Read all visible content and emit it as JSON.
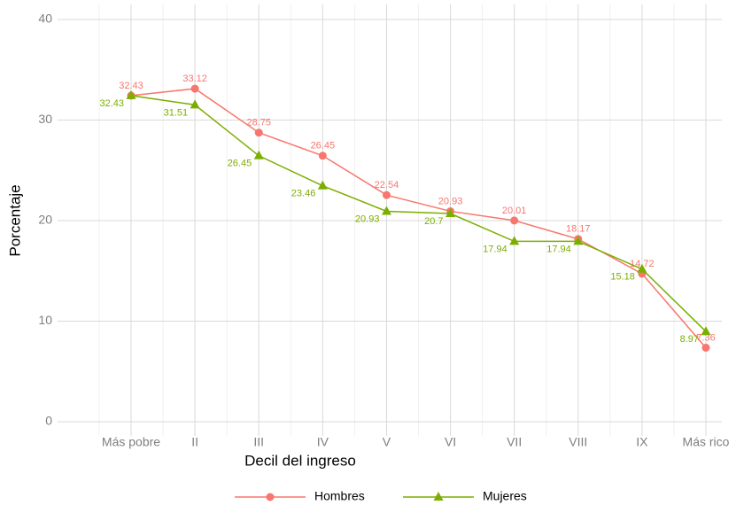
{
  "chart_data": {
    "type": "line",
    "x_label": "Decil del ingreso",
    "y_label": "Porcentaje",
    "categories": [
      "Más pobre",
      "II",
      "III",
      "IV",
      "V",
      "VI",
      "VII",
      "VIII",
      "IX",
      "Más rico"
    ],
    "series": [
      {
        "name": "Hombres",
        "color": "#F8766D",
        "marker": "circle",
        "values": [
          32.43,
          33.12,
          28.75,
          26.45,
          22.54,
          20.93,
          20.01,
          18.17,
          14.72,
          7.36
        ]
      },
      {
        "name": "Mujeres",
        "color": "#7CAE00",
        "marker": "triangle",
        "values": [
          32.43,
          31.51,
          26.45,
          23.46,
          20.93,
          20.7,
          17.94,
          17.94,
          15.18,
          8.97
        ]
      }
    ],
    "ylim": [
      0,
      40
    ],
    "yticks": [
      0,
      10,
      20,
      30,
      40
    ],
    "grid": true,
    "legend": "bottom"
  }
}
